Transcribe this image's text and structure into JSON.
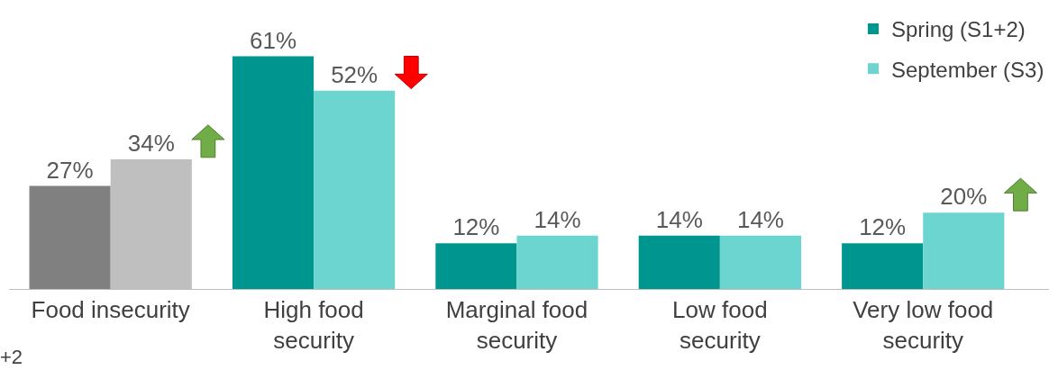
{
  "chart_data": {
    "type": "bar",
    "categories": [
      "Food insecurity",
      "High food\nsecurity",
      "Marginal food\nsecurity",
      "Low food\nsecurity",
      "Very low food\nsecurity"
    ],
    "series": [
      {
        "name": "Spring (S1+2)",
        "color": "#009690",
        "colors": [
          "#808080",
          "#009690",
          "#009690",
          "#009690",
          "#009690"
        ],
        "values": [
          27,
          61,
          12,
          14,
          12
        ],
        "value_labels": [
          "27%",
          "61%",
          "12%",
          "14%",
          "12%"
        ]
      },
      {
        "name": "September (S3)",
        "color": "#6dd5cf",
        "colors": [
          "#bfbfbf",
          "#6dd5cf",
          "#6dd5cf",
          "#6dd5cf",
          "#6dd5cf"
        ],
        "values": [
          34,
          52,
          14,
          14,
          20
        ],
        "value_labels": [
          "34%",
          "52%",
          "14%",
          "14%",
          "20%"
        ]
      }
    ],
    "legend": "top right",
    "annotations": [
      "+2"
    ]
  }
}
